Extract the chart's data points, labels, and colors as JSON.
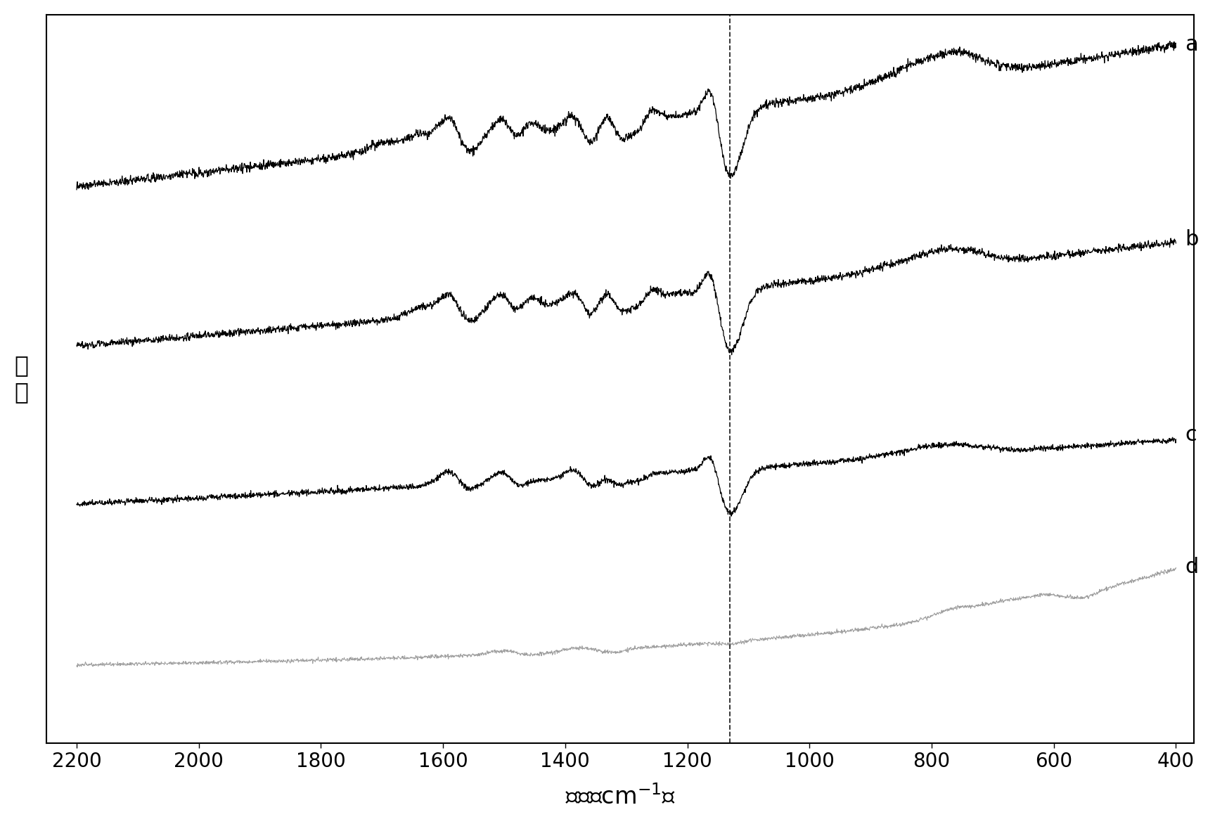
{
  "xlabel": "波数（cm-1）",
  "ylabel": "强\n度",
  "x_min": 400,
  "x_max": 2200,
  "x_ticks": [
    2200,
    2000,
    1800,
    1600,
    1400,
    1200,
    1000,
    800,
    600,
    400
  ],
  "dashed_line_x": 1130,
  "background_color": "#ffffff",
  "line_color_a": "#000000",
  "line_color_b": "#000000",
  "line_color_c": "#000000",
  "line_color_d": "#888888",
  "label_fontsize": 22,
  "tick_fontsize": 20,
  "curve_labels": [
    "a",
    "b",
    "c",
    "d"
  ],
  "offsets": [
    3.0,
    2.0,
    1.0,
    0.0
  ],
  "fig_width": 17.28,
  "fig_height": 11.72
}
